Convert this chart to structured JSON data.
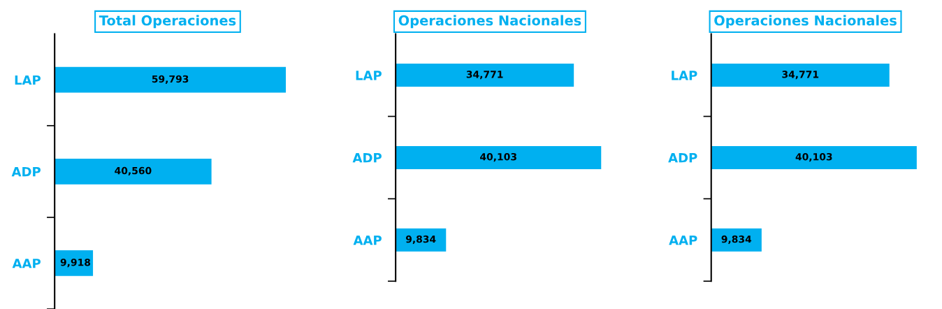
{
  "chart_data": [
    {
      "type": "bar",
      "orientation": "horizontal",
      "title": "Total Operaciones",
      "categories": [
        "LAP",
        "ADP",
        "AAP"
      ],
      "series": [
        {
          "color": "#00b0f0",
          "values": [
            59793,
            40560,
            9918
          ],
          "value_labels": [
            "59,793",
            "40,560",
            "9,918"
          ]
        }
      ],
      "grid": false,
      "legend": false,
      "tick_labels": "y"
    },
    {
      "type": "bar",
      "orientation": "horizontal",
      "title": "Operaciones Nacionales",
      "categories": [
        "LAP",
        "ADP",
        "AAP"
      ],
      "series": [
        {
          "color": "#00b0f0",
          "values": [
            34771,
            40103,
            9834
          ],
          "value_labels": [
            "34,771",
            "40,103",
            "9,834"
          ]
        }
      ],
      "grid": false,
      "legend": false,
      "tick_labels": "y"
    },
    {
      "type": "bar",
      "orientation": "horizontal",
      "title": "Operaciones Nacionales",
      "categories": [
        "LAP",
        "ADP",
        "AAP"
      ],
      "series": [
        {
          "color": "#00b0f0",
          "values": [
            34771,
            40103,
            9834
          ],
          "value_labels": [
            "34,771",
            "40,103",
            "9,834"
          ]
        }
      ],
      "grid": false,
      "legend": false,
      "tick_labels": "y"
    }
  ]
}
